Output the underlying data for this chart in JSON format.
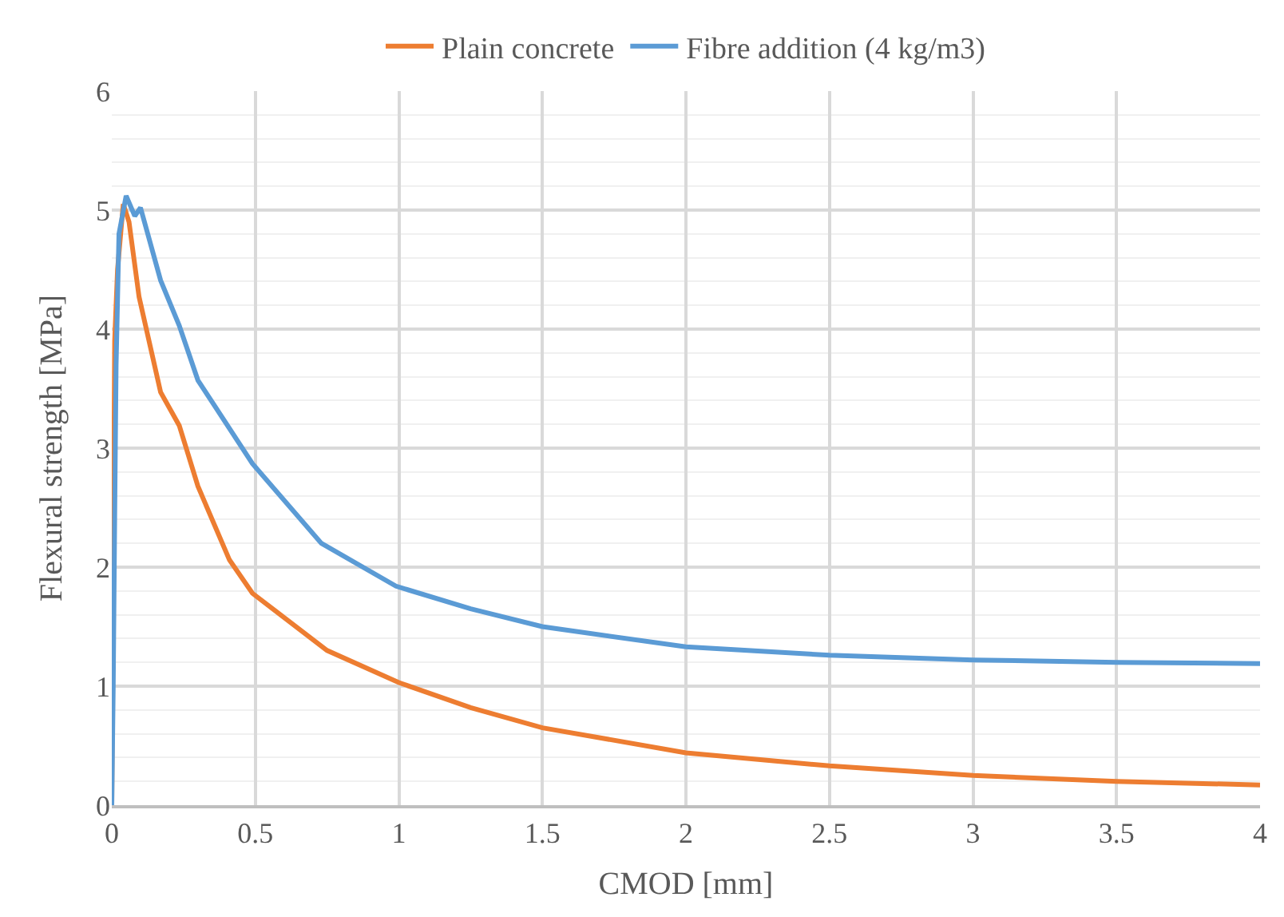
{
  "chart_data": {
    "type": "line",
    "xlabel": "CMOD [mm]",
    "ylabel": "Flexural strength [MPa]",
    "xlim": [
      0,
      4
    ],
    "xticks": [
      0,
      0.5,
      1,
      1.5,
      2,
      2.5,
      3,
      3.5,
      4
    ],
    "ylim": [
      0,
      6
    ],
    "yticks": [
      0,
      1,
      2,
      3,
      4,
      5,
      6
    ],
    "grid": true,
    "legend": "top",
    "marker": "none",
    "line_style": "solid",
    "series": [
      {
        "name": "Plain concrete",
        "color": "#ed7d31",
        "x": [
          0,
          0.01,
          0.02,
          0.04,
          0.06,
          0.095,
          0.17,
          0.235,
          0.3,
          0.41,
          0.49,
          0.75,
          1.0,
          1.25,
          1.5,
          2.0,
          2.5,
          3.0,
          3.5,
          4.0
        ],
        "values": [
          0,
          3.9,
          4.5,
          5.05,
          4.9,
          4.27,
          3.47,
          3.19,
          2.68,
          2.06,
          1.78,
          1.3,
          1.03,
          0.82,
          0.65,
          0.44,
          0.33,
          0.25,
          0.2,
          0.17
        ]
      },
      {
        "name": "Fibre addition (4 kg/m3)",
        "color": "#5b9bd5",
        "x": [
          0,
          0.005,
          0.01,
          0.015,
          0.025,
          0.05,
          0.08,
          0.1,
          0.17,
          0.235,
          0.3,
          0.49,
          0.73,
          0.99,
          1.25,
          1.5,
          2.0,
          2.5,
          3.0,
          3.5,
          4.0
        ],
        "values": [
          0,
          1.0,
          2.4,
          3.7,
          4.8,
          5.12,
          4.95,
          5.02,
          4.41,
          4.03,
          3.57,
          2.87,
          2.2,
          1.84,
          1.65,
          1.5,
          1.33,
          1.26,
          1.22,
          1.2,
          1.19
        ]
      }
    ]
  }
}
